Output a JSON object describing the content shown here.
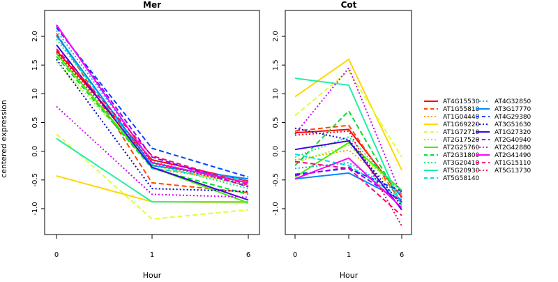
{
  "chart_data": {
    "type": "line",
    "ylabel": "centered expression",
    "xlabel": "Hour",
    "x": [
      "0",
      "1",
      "6"
    ],
    "ylim": [
      -1.45,
      2.45
    ],
    "yticks": [
      "-1.0",
      "-0.5",
      "0.0",
      "0.5",
      "1.0",
      "1.5",
      "2.0"
    ],
    "legend_position": "right",
    "series_styles": [
      {
        "name": "AT4G15530",
        "color": "#FF0000",
        "dash": "solid"
      },
      {
        "name": "AT1G55810",
        "color": "#FF4500",
        "dash": "dashed"
      },
      {
        "name": "AT1G04440",
        "color": "#FF9900",
        "dash": "dotted"
      },
      {
        "name": "AT1G69220",
        "color": "#FFD700",
        "dash": "solid"
      },
      {
        "name": "AT1G72710",
        "color": "#DDFF33",
        "dash": "dashed"
      },
      {
        "name": "AT2G17520",
        "color": "#99FF00",
        "dash": "dotted"
      },
      {
        "name": "AT2G25760",
        "color": "#44EE00",
        "dash": "solid"
      },
      {
        "name": "AT2G31800",
        "color": "#00DD33",
        "dash": "dashed"
      },
      {
        "name": "AT3G20410",
        "color": "#00EE77",
        "dash": "dotted"
      },
      {
        "name": "AT5G20930",
        "color": "#22EEAA",
        "dash": "solid"
      },
      {
        "name": "AT5G58140",
        "color": "#00DDDD",
        "dash": "dashed"
      },
      {
        "name": "AT4G32850",
        "color": "#00BBEE",
        "dash": "dotted"
      },
      {
        "name": "AT3G17770",
        "color": "#0088FF",
        "dash": "solid"
      },
      {
        "name": "AT4G29380",
        "color": "#0044FF",
        "dash": "dashed"
      },
      {
        "name": "AT3G51630",
        "color": "#0000CC",
        "dash": "dotted"
      },
      {
        "name": "AT1G27320",
        "color": "#4400DD",
        "dash": "solid"
      },
      {
        "name": "AT2G40940",
        "color": "#8800FF",
        "dash": "dashed"
      },
      {
        "name": "AT2G42880",
        "color": "#CC00FF",
        "dash": "dotted"
      },
      {
        "name": "AT2G41490",
        "color": "#FF00FF",
        "dash": "solid"
      },
      {
        "name": "AT1G15110",
        "color": "#FF0077",
        "dash": "dashed"
      },
      {
        "name": "AT5G13730",
        "color": "#FF0033",
        "dash": "dotted"
      }
    ],
    "panels": [
      {
        "title": "Mer",
        "series": [
          {
            "name": "AT4G15530",
            "values": [
              1.75,
              -0.15,
              -0.52
            ]
          },
          {
            "name": "AT1G55810",
            "values": [
              2.05,
              -0.55,
              -0.72
            ]
          },
          {
            "name": "AT1G04440",
            "values": [
              1.7,
              -0.3,
              -0.55
            ]
          },
          {
            "name": "AT1G69220",
            "values": [
              -0.43,
              -0.88,
              -0.9
            ]
          },
          {
            "name": "AT1G72710",
            "values": [
              0.3,
              -1.18,
              -1.02
            ]
          },
          {
            "name": "AT2G17520",
            "values": [
              1.55,
              -0.25,
              -0.6
            ]
          },
          {
            "name": "AT2G25760",
            "values": [
              1.7,
              -0.28,
              -0.9
            ]
          },
          {
            "name": "AT2G31800",
            "values": [
              1.65,
              -0.3,
              -0.75
            ]
          },
          {
            "name": "AT3G20410",
            "values": [
              1.95,
              -0.22,
              -0.65
            ]
          },
          {
            "name": "AT5G20930",
            "values": [
              0.22,
              -0.88,
              -0.88
            ]
          },
          {
            "name": "AT5G58140",
            "values": [
              2.0,
              -0.3,
              -0.5
            ]
          },
          {
            "name": "AT4G32850",
            "values": [
              2.1,
              -0.18,
              -0.58
            ]
          },
          {
            "name": "AT3G17770",
            "values": [
              2.02,
              -0.25,
              -0.48
            ]
          },
          {
            "name": "AT4G29380",
            "values": [
              2.15,
              0.05,
              -0.45
            ]
          },
          {
            "name": "AT3G51630",
            "values": [
              1.6,
              -0.65,
              -0.7
            ]
          },
          {
            "name": "AT1G27320",
            "values": [
              1.85,
              -0.28,
              -0.85
            ]
          },
          {
            "name": "AT2G40940",
            "values": [
              2.18,
              -0.1,
              -0.62
            ]
          },
          {
            "name": "AT2G42880",
            "values": [
              0.78,
              -0.75,
              -0.8
            ]
          },
          {
            "name": "AT2G41490",
            "values": [
              2.2,
              -0.2,
              -0.55
            ]
          },
          {
            "name": "AT1G15110",
            "values": [
              1.78,
              -0.08,
              -0.58
            ]
          },
          {
            "name": "AT5G13730",
            "values": [
              1.72,
              -0.2,
              -0.6
            ]
          }
        ]
      },
      {
        "title": "Cot",
        "series": [
          {
            "name": "AT4G15530",
            "values": [
              0.32,
              0.38,
              -0.8
            ]
          },
          {
            "name": "AT1G55810",
            "values": [
              0.35,
              0.45,
              -0.9
            ]
          },
          {
            "name": "AT1G04440",
            "values": [
              -0.15,
              0.02,
              -0.75
            ]
          },
          {
            "name": "AT1G69220",
            "values": [
              0.95,
              1.6,
              -0.33
            ]
          },
          {
            "name": "AT1G72710",
            "values": [
              0.62,
              1.4,
              -0.1
            ]
          },
          {
            "name": "AT2G17520",
            "values": [
              -0.2,
              0.1,
              -0.7
            ]
          },
          {
            "name": "AT2G25760",
            "values": [
              -0.45,
              0.15,
              -0.68
            ]
          },
          {
            "name": "AT2G31800",
            "values": [
              -0.25,
              0.7,
              -0.9
            ]
          },
          {
            "name": "AT3G20410",
            "values": [
              -0.1,
              0.25,
              -0.72
            ]
          },
          {
            "name": "AT5G20930",
            "values": [
              1.27,
              1.15,
              -0.95
            ]
          },
          {
            "name": "AT5G58140",
            "values": [
              -0.05,
              -0.25,
              -0.82
            ]
          },
          {
            "name": "AT4G32850",
            "values": [
              -0.3,
              -0.2,
              -0.75
            ]
          },
          {
            "name": "AT3G17770",
            "values": [
              -0.48,
              -0.38,
              -0.85
            ]
          },
          {
            "name": "AT4G29380",
            "values": [
              -0.4,
              -0.3,
              -0.7
            ]
          },
          {
            "name": "AT3G51630",
            "values": [
              0.4,
              0.2,
              -0.95
            ]
          },
          {
            "name": "AT1G27320",
            "values": [
              0.03,
              0.18,
              -1.02
            ]
          },
          {
            "name": "AT2G40940",
            "values": [
              -0.42,
              -0.28,
              -0.88
            ]
          },
          {
            "name": "AT2G42880",
            "values": [
              0.3,
              1.45,
              -0.78
            ]
          },
          {
            "name": "AT2G41490",
            "values": [
              -0.48,
              -0.12,
              -0.98
            ]
          },
          {
            "name": "AT1G15110",
            "values": [
              -0.18,
              -0.3,
              -1.12
            ]
          },
          {
            "name": "AT5G13730",
            "values": [
              0.28,
              0.35,
              -1.3
            ]
          }
        ]
      }
    ]
  }
}
